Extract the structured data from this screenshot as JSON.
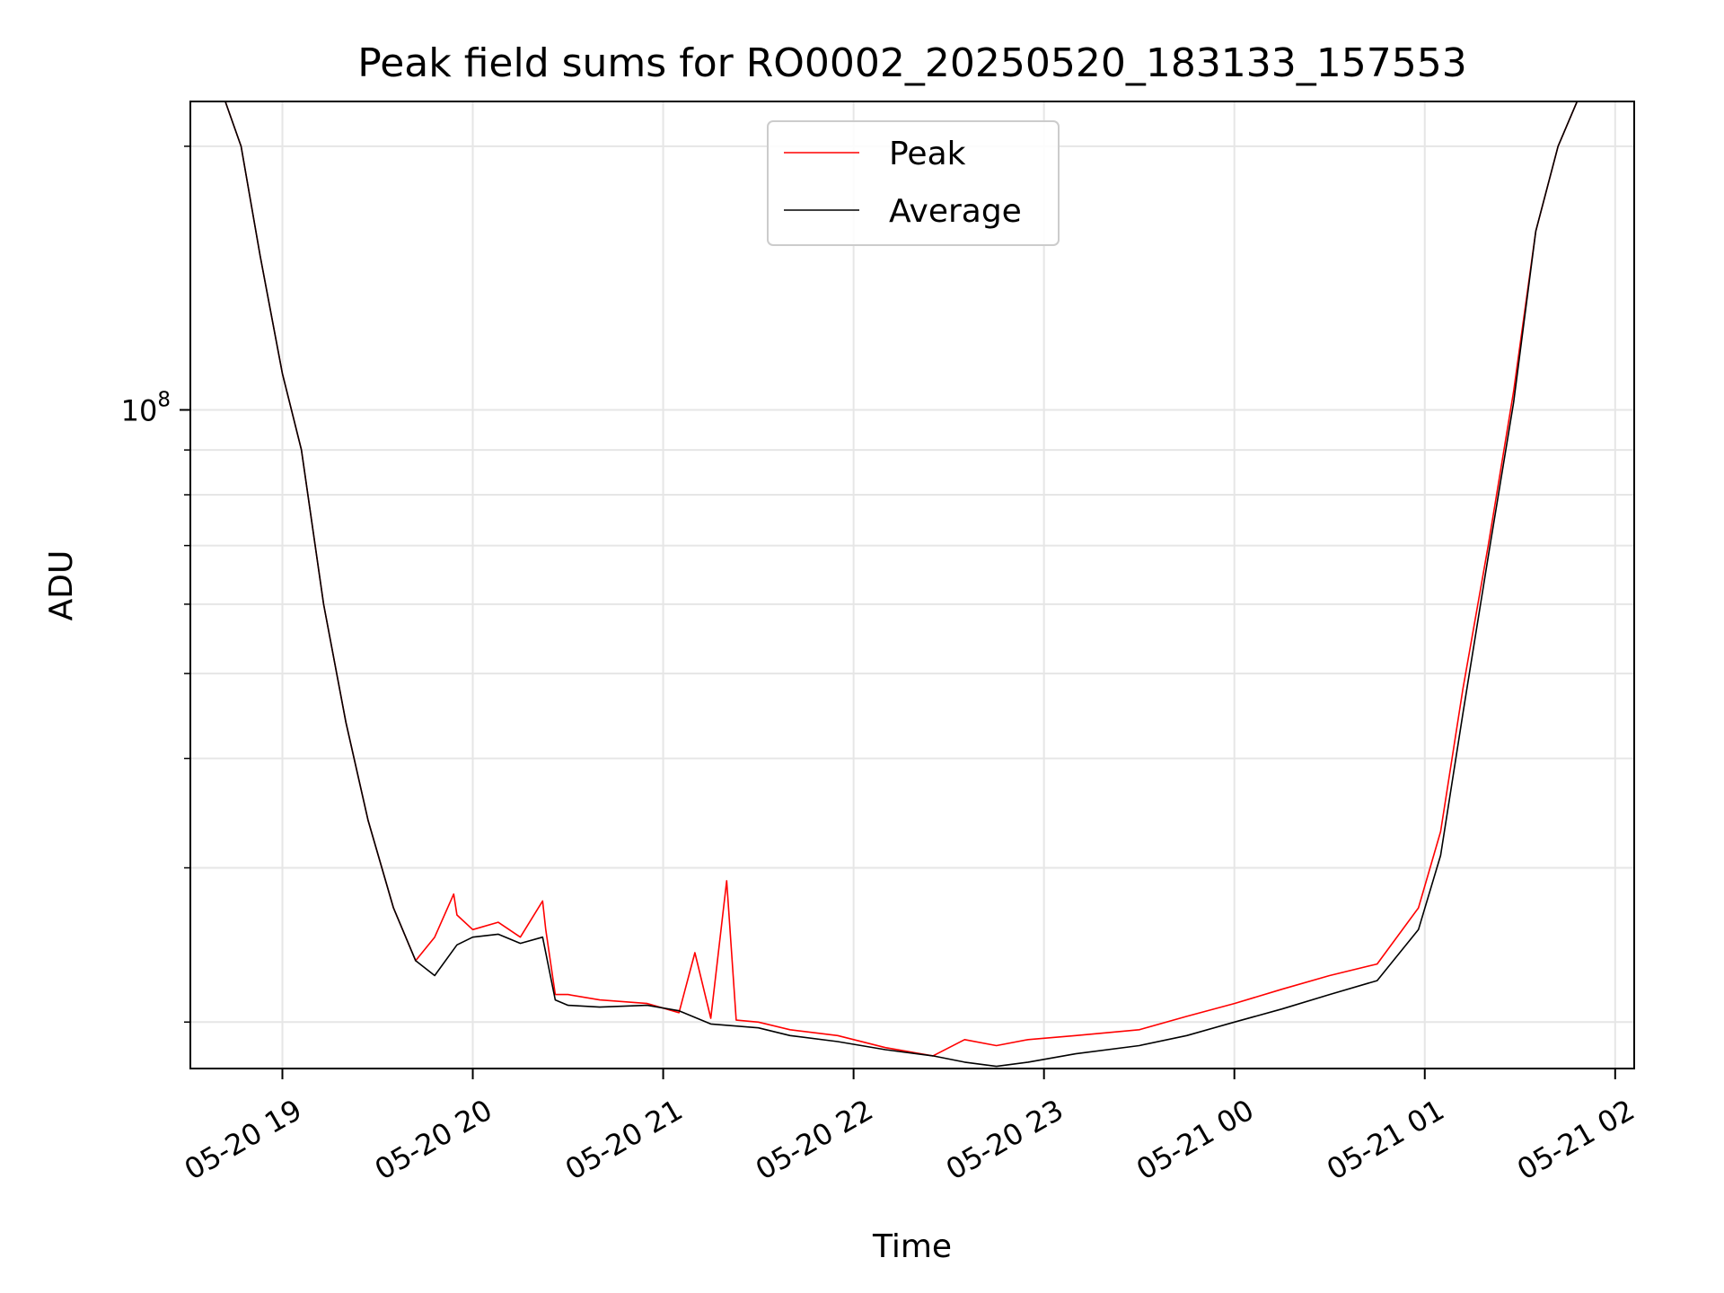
{
  "chart_data": {
    "type": "line",
    "title": "Peak field sums for RO0002_20250520_183133_157553",
    "xlabel": "Time",
    "ylabel": "ADU",
    "yscale": "log",
    "xlim": [
      "2025-05-20 18:31",
      "2025-05-21 02:06"
    ],
    "ylim": [
      17700000,
      225000000
    ],
    "grid": true,
    "legend": {
      "placement": "top-center"
    },
    "x_ticks": [
      {
        "x": "2025-05-20 19:00",
        "label": "05-20 19"
      },
      {
        "x": "2025-05-20 20:00",
        "label": "05-20 20"
      },
      {
        "x": "2025-05-20 21:00",
        "label": "05-20 21"
      },
      {
        "x": "2025-05-20 22:00",
        "label": "05-20 22"
      },
      {
        "x": "2025-05-20 23:00",
        "label": "05-20 23"
      },
      {
        "x": "2025-05-21 00:00",
        "label": "05-21 00"
      },
      {
        "x": "2025-05-21 01:00",
        "label": "05-21 01"
      },
      {
        "x": "2025-05-21 02:00",
        "label": "05-21 02"
      }
    ],
    "y_ticks_major": [
      {
        "y": 100000000,
        "base": "10",
        "exp": "8"
      }
    ],
    "y_ticks_minor": [
      20000000,
      30000000,
      40000000,
      50000000,
      60000000,
      70000000,
      80000000,
      90000000,
      200000000
    ],
    "series": [
      {
        "name": "Peak",
        "color": "#ff0000",
        "x": [
          "2025-05-20 18:31",
          "2025-05-20 18:42",
          "2025-05-20 18:47",
          "2025-05-20 18:53",
          "2025-05-20 19:00",
          "2025-05-20 19:06",
          "2025-05-20 19:13",
          "2025-05-20 19:20",
          "2025-05-20 19:27",
          "2025-05-20 19:35",
          "2025-05-20 19:42",
          "2025-05-20 19:48",
          "2025-05-20 19:54",
          "2025-05-20 19:55",
          "2025-05-20 20:00",
          "2025-05-20 20:08",
          "2025-05-20 20:15",
          "2025-05-20 20:22",
          "2025-05-20 20:23",
          "2025-05-20 20:26",
          "2025-05-20 20:30",
          "2025-05-20 20:40",
          "2025-05-20 20:55",
          "2025-05-20 21:05",
          "2025-05-20 21:10",
          "2025-05-20 21:15",
          "2025-05-20 21:20",
          "2025-05-20 21:23",
          "2025-05-20 21:30",
          "2025-05-20 21:40",
          "2025-05-20 21:55",
          "2025-05-20 22:10",
          "2025-05-20 22:25",
          "2025-05-20 22:35",
          "2025-05-20 22:45",
          "2025-05-20 22:55",
          "2025-05-20 23:10",
          "2025-05-20 23:30",
          "2025-05-20 23:45",
          "2025-05-21 00:00",
          "2025-05-21 00:15",
          "2025-05-21 00:30",
          "2025-05-21 00:45",
          "2025-05-21 00:58",
          "2025-05-21 01:05",
          "2025-05-21 01:12",
          "2025-05-21 01:20",
          "2025-05-21 01:28",
          "2025-05-21 01:35",
          "2025-05-21 01:42",
          "2025-05-21 01:48",
          "2025-05-21 01:55",
          "2025-05-21 02:06"
        ],
        "y": [
          225000000,
          225000000,
          200000000,
          150000000,
          110000000,
          90000000,
          60000000,
          44000000,
          34000000,
          27000000,
          23500000,
          25000000,
          28000000,
          26500000,
          25500000,
          26000000,
          25000000,
          27500000,
          25500000,
          21500000,
          21500000,
          21200000,
          21000000,
          20500000,
          24000000,
          20200000,
          29000000,
          20100000,
          20000000,
          19600000,
          19300000,
          18700000,
          18300000,
          19100000,
          18800000,
          19100000,
          19300000,
          19600000,
          20300000,
          21000000,
          21800000,
          22600000,
          23300000,
          27000000,
          33000000,
          48000000,
          70000000,
          105000000,
          160000000,
          200000000,
          225000000,
          225000000,
          225000000
        ]
      },
      {
        "name": "Average",
        "color": "#000000",
        "x": [
          "2025-05-20 18:31",
          "2025-05-20 18:42",
          "2025-05-20 18:47",
          "2025-05-20 18:53",
          "2025-05-20 19:00",
          "2025-05-20 19:06",
          "2025-05-20 19:13",
          "2025-05-20 19:20",
          "2025-05-20 19:27",
          "2025-05-20 19:35",
          "2025-05-20 19:42",
          "2025-05-20 19:48",
          "2025-05-20 19:55",
          "2025-05-20 20:00",
          "2025-05-20 20:08",
          "2025-05-20 20:15",
          "2025-05-20 20:22",
          "2025-05-20 20:26",
          "2025-05-20 20:30",
          "2025-05-20 20:40",
          "2025-05-20 20:55",
          "2025-05-20 21:05",
          "2025-05-20 21:15",
          "2025-05-20 21:30",
          "2025-05-20 21:40",
          "2025-05-20 21:55",
          "2025-05-20 22:10",
          "2025-05-20 22:25",
          "2025-05-20 22:35",
          "2025-05-20 22:45",
          "2025-05-20 22:55",
          "2025-05-20 23:10",
          "2025-05-20 23:30",
          "2025-05-20 23:45",
          "2025-05-21 00:00",
          "2025-05-21 00:15",
          "2025-05-21 00:30",
          "2025-05-21 00:45",
          "2025-05-21 00:58",
          "2025-05-21 01:05",
          "2025-05-21 01:12",
          "2025-05-21 01:20",
          "2025-05-21 01:28",
          "2025-05-21 01:35",
          "2025-05-21 01:42",
          "2025-05-21 01:48",
          "2025-05-21 01:55",
          "2025-05-21 02:06"
        ],
        "y": [
          225000000,
          225000000,
          200000000,
          150000000,
          110000000,
          90000000,
          60000000,
          44000000,
          34000000,
          27000000,
          23500000,
          22600000,
          24500000,
          25000000,
          25200000,
          24600000,
          25000000,
          21200000,
          20900000,
          20800000,
          20900000,
          20600000,
          19900000,
          19700000,
          19300000,
          19000000,
          18600000,
          18300000,
          18000000,
          17800000,
          18000000,
          18400000,
          18800000,
          19300000,
          20000000,
          20700000,
          21500000,
          22300000,
          25500000,
          31000000,
          45000000,
          68000000,
          102000000,
          160000000,
          200000000,
          225000000,
          225000000,
          225000000
        ]
      }
    ]
  }
}
